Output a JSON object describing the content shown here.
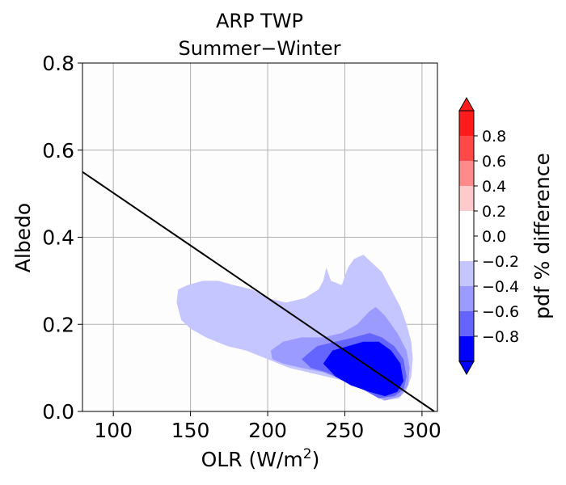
{
  "chart_data": {
    "type": "heatmap",
    "title": "ARP TWP",
    "subtitle": "Summer−Winter",
    "xlabel": "OLR (W/m",
    "xlabel_sup": "2",
    "xlabel_close": ")",
    "ylabel": "Albedo",
    "xlim": [
      80,
      310
    ],
    "ylim": [
      0.0,
      0.8
    ],
    "xticks": [
      100,
      150,
      200,
      250,
      300
    ],
    "xtick_labels": [
      "100",
      "150",
      "200",
      "250",
      "300"
    ],
    "yticks": [
      0.0,
      0.2,
      0.4,
      0.6,
      0.8
    ],
    "ytick_labels": [
      "0.0",
      "0.2",
      "0.4",
      "0.6",
      "0.8"
    ],
    "grid": true,
    "contour_levels": [
      {
        "level": -0.2,
        "color": "#c5c5ff",
        "polygon": [
          [
            141,
            0.25
          ],
          [
            142,
            0.28
          ],
          [
            148,
            0.29
          ],
          [
            158,
            0.3
          ],
          [
            168,
            0.3
          ],
          [
            178,
            0.29
          ],
          [
            190,
            0.28
          ],
          [
            200,
            0.26
          ],
          [
            212,
            0.25
          ],
          [
            224,
            0.26
          ],
          [
            233,
            0.28
          ],
          [
            236,
            0.3
          ],
          [
            238,
            0.33
          ],
          [
            241,
            0.3
          ],
          [
            248,
            0.29
          ],
          [
            252,
            0.33
          ],
          [
            256,
            0.35
          ],
          [
            262,
            0.36
          ],
          [
            268,
            0.34
          ],
          [
            274,
            0.32
          ],
          [
            280,
            0.28
          ],
          [
            286,
            0.24
          ],
          [
            290,
            0.2
          ],
          [
            293,
            0.16
          ],
          [
            294,
            0.12
          ],
          [
            293,
            0.08
          ],
          [
            290,
            0.05
          ],
          [
            285,
            0.03
          ],
          [
            275,
            0.025
          ],
          [
            262,
            0.05
          ],
          [
            250,
            0.07
          ],
          [
            238,
            0.08
          ],
          [
            226,
            0.09
          ],
          [
            214,
            0.1
          ],
          [
            200,
            0.12
          ],
          [
            186,
            0.14
          ],
          [
            174,
            0.15
          ],
          [
            160,
            0.17
          ],
          [
            150,
            0.19
          ],
          [
            144,
            0.21
          ]
        ]
      },
      {
        "level": -0.4,
        "color": "#9b9bff",
        "polygon": [
          [
            202,
            0.14
          ],
          [
            210,
            0.16
          ],
          [
            222,
            0.17
          ],
          [
            236,
            0.17
          ],
          [
            248,
            0.18
          ],
          [
            258,
            0.2
          ],
          [
            266,
            0.23
          ],
          [
            270,
            0.24
          ],
          [
            276,
            0.22
          ],
          [
            284,
            0.18
          ],
          [
            290,
            0.14
          ],
          [
            292,
            0.1
          ],
          [
            291,
            0.06
          ],
          [
            286,
            0.035
          ],
          [
            276,
            0.025
          ],
          [
            264,
            0.05
          ],
          [
            250,
            0.07
          ],
          [
            236,
            0.09
          ],
          [
            222,
            0.1
          ],
          [
            210,
            0.11
          ],
          [
            203,
            0.12
          ]
        ]
      },
      {
        "level": -0.6,
        "color": "#6464ff",
        "polygon": [
          [
            222,
            0.12
          ],
          [
            232,
            0.15
          ],
          [
            244,
            0.16
          ],
          [
            256,
            0.17
          ],
          [
            266,
            0.18
          ],
          [
            274,
            0.17
          ],
          [
            282,
            0.15
          ],
          [
            288,
            0.12
          ],
          [
            290,
            0.08
          ],
          [
            288,
            0.05
          ],
          [
            282,
            0.035
          ],
          [
            272,
            0.03
          ],
          [
            262,
            0.05
          ],
          [
            250,
            0.07
          ],
          [
            238,
            0.09
          ],
          [
            228,
            0.1
          ]
        ]
      },
      {
        "level": -0.8,
        "color": "#0000ff",
        "polygon": [
          [
            236,
            0.11
          ],
          [
            242,
            0.14
          ],
          [
            252,
            0.15
          ],
          [
            262,
            0.16
          ],
          [
            272,
            0.16
          ],
          [
            280,
            0.14
          ],
          [
            286,
            0.11
          ],
          [
            288,
            0.07
          ],
          [
            284,
            0.045
          ],
          [
            276,
            0.035
          ],
          [
            266,
            0.045
          ],
          [
            254,
            0.06
          ],
          [
            244,
            0.08
          ]
        ]
      }
    ],
    "line": {
      "x": [
        80,
        308
      ],
      "y": [
        0.55,
        0.0
      ],
      "color": "#000000"
    },
    "colorbar": {
      "label": "pdf % difference",
      "ticks": [
        0.8,
        0.6,
        0.4,
        0.2,
        0.0,
        -0.2,
        -0.4,
        -0.6,
        -0.8
      ],
      "tick_labels": [
        "0.8",
        "0.6",
        "0.4",
        "0.2",
        "0.0",
        "−0.2",
        "−0.4",
        "−0.6",
        "−0.8"
      ],
      "bins": [
        {
          "range": [
            0.8,
            1.0
          ],
          "color": "#ff1b1b"
        },
        {
          "range": [
            0.6,
            0.8
          ],
          "color": "#ff4949"
        },
        {
          "range": [
            0.4,
            0.6
          ],
          "color": "#ff8a8a"
        },
        {
          "range": [
            0.2,
            0.4
          ],
          "color": "#ffcaca"
        },
        {
          "range": [
            0.0,
            0.2
          ],
          "color": "#ffffff"
        },
        {
          "range": [
            -0.2,
            0.0
          ],
          "color": "#ffffff"
        },
        {
          "range": [
            -0.4,
            -0.2
          ],
          "color": "#c5c5ff"
        },
        {
          "range": [
            -0.6,
            -0.4
          ],
          "color": "#9b9bff"
        },
        {
          "range": [
            -0.8,
            -0.6
          ],
          "color": "#6464ff"
        },
        {
          "range": [
            -1.0,
            -0.8
          ],
          "color": "#0000ff"
        }
      ],
      "extend": "both"
    }
  }
}
